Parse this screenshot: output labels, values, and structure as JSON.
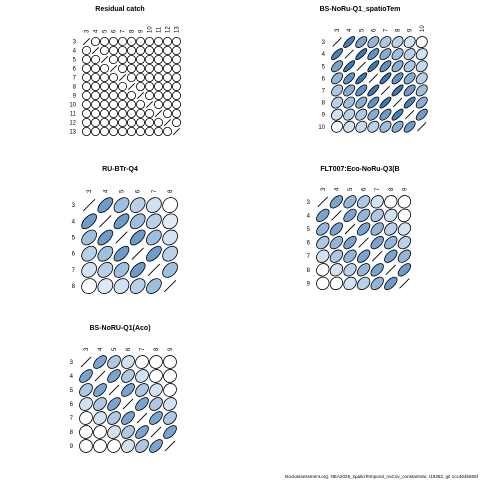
{
  "footer": "stockassessment.org, NEA2025_spatioTemporal_noCov_constantVar, r19282, git 1cc464b806f",
  "chart_data": [
    {
      "type": "correlation-matrix",
      "title": "Residual catch",
      "ages": [
        "3",
        "4",
        "5",
        "6",
        "7",
        "8",
        "9",
        "10",
        "11",
        "12",
        "13"
      ],
      "matrix": [
        [
          1.0,
          0.05,
          0.02,
          0.0,
          0.02,
          0.0,
          0.0,
          0.0,
          0.0,
          0.0,
          0.0
        ],
        [
          0.05,
          1.0,
          0.05,
          0.0,
          0.0,
          0.0,
          0.0,
          0.0,
          0.0,
          0.0,
          0.0
        ],
        [
          0.02,
          0.05,
          1.0,
          0.05,
          0.0,
          0.0,
          0.0,
          0.0,
          0.0,
          0.0,
          0.0
        ],
        [
          0.0,
          0.0,
          0.05,
          1.0,
          0.0,
          0.0,
          0.0,
          0.0,
          0.0,
          0.0,
          0.0
        ],
        [
          0.02,
          0.0,
          0.0,
          0.0,
          1.0,
          0.05,
          0.0,
          0.0,
          0.0,
          0.0,
          0.0
        ],
        [
          0.0,
          0.0,
          0.0,
          0.0,
          0.05,
          1.0,
          0.0,
          0.0,
          0.0,
          0.0,
          0.0
        ],
        [
          0.0,
          0.0,
          0.0,
          0.0,
          0.0,
          0.0,
          1.0,
          0.0,
          0.0,
          0.0,
          0.0
        ],
        [
          0.0,
          0.0,
          0.0,
          0.0,
          0.0,
          0.0,
          0.0,
          1.0,
          0.0,
          0.0,
          0.0
        ],
        [
          0.0,
          0.0,
          0.0,
          0.0,
          0.0,
          0.0,
          0.0,
          0.0,
          1.0,
          0.0,
          0.0
        ],
        [
          0.0,
          0.0,
          0.0,
          0.0,
          0.0,
          0.0,
          0.0,
          0.0,
          0.0,
          1.0,
          0.0
        ],
        [
          0.0,
          0.0,
          0.0,
          0.0,
          0.0,
          0.0,
          0.0,
          0.0,
          0.0,
          0.0,
          1.0
        ]
      ]
    },
    {
      "type": "correlation-matrix",
      "title": "BS-NoRu-Q1_spatioTem",
      "ages": [
        "3",
        "4",
        "5",
        "6",
        "7",
        "8",
        "9",
        "10"
      ],
      "matrix": [
        [
          1.0,
          0.75,
          0.55,
          0.45,
          0.35,
          0.3,
          0.2,
          0.1
        ],
        [
          0.75,
          1.0,
          0.8,
          0.65,
          0.5,
          0.4,
          0.3,
          0.2
        ],
        [
          0.55,
          0.8,
          1.0,
          0.8,
          0.65,
          0.5,
          0.35,
          0.25
        ],
        [
          0.45,
          0.65,
          0.8,
          1.0,
          0.8,
          0.65,
          0.5,
          0.3
        ],
        [
          0.35,
          0.5,
          0.65,
          0.8,
          1.0,
          0.8,
          0.6,
          0.4
        ],
        [
          0.3,
          0.4,
          0.5,
          0.65,
          0.8,
          1.0,
          0.75,
          0.5
        ],
        [
          0.2,
          0.3,
          0.35,
          0.5,
          0.6,
          0.75,
          1.0,
          0.6
        ],
        [
          0.1,
          0.2,
          0.25,
          0.3,
          0.4,
          0.5,
          0.6,
          1.0
        ]
      ]
    },
    {
      "type": "correlation-matrix",
      "title": "RU-BTr-Q4",
      "ages": [
        "3",
        "4",
        "5",
        "6",
        "7",
        "8"
      ],
      "matrix": [
        [
          1.0,
          0.6,
          0.4,
          0.3,
          0.2,
          0.1
        ],
        [
          0.6,
          1.0,
          0.6,
          0.4,
          0.3,
          0.15
        ],
        [
          0.4,
          0.6,
          1.0,
          0.6,
          0.4,
          0.2
        ],
        [
          0.3,
          0.4,
          0.6,
          1.0,
          0.6,
          0.3
        ],
        [
          0.2,
          0.3,
          0.4,
          0.6,
          1.0,
          0.4
        ],
        [
          0.1,
          0.15,
          0.2,
          0.3,
          0.4,
          1.0
        ]
      ]
    },
    {
      "type": "correlation-matrix",
      "title": "FLT007:Eco-NoRu-Q3(B",
      "ages": [
        "3",
        "4",
        "5",
        "6",
        "7",
        "8",
        "9"
      ],
      "matrix": [
        [
          1.0,
          0.55,
          0.45,
          0.35,
          0.2,
          0.1,
          0.05
        ],
        [
          0.55,
          1.0,
          0.55,
          0.45,
          0.35,
          0.2,
          0.1
        ],
        [
          0.45,
          0.55,
          1.0,
          0.55,
          0.45,
          0.3,
          0.2
        ],
        [
          0.35,
          0.45,
          0.55,
          1.0,
          0.55,
          0.45,
          0.3
        ],
        [
          0.2,
          0.35,
          0.45,
          0.55,
          1.0,
          0.55,
          0.45
        ],
        [
          0.1,
          0.2,
          0.3,
          0.45,
          0.55,
          1.0,
          0.6
        ],
        [
          0.05,
          0.1,
          0.2,
          0.3,
          0.45,
          0.6,
          1.0
        ]
      ]
    },
    {
      "type": "correlation-matrix",
      "title": "BS-NoRU-Q1(Aco)",
      "ages": [
        "3",
        "4",
        "5",
        "6",
        "7",
        "8",
        "9"
      ],
      "matrix": [
        [
          1.0,
          0.55,
          0.35,
          0.2,
          0.1,
          0.05,
          0.0
        ],
        [
          0.55,
          1.0,
          0.55,
          0.35,
          0.2,
          0.1,
          0.05
        ],
        [
          0.35,
          0.55,
          1.0,
          0.55,
          0.35,
          0.2,
          0.1
        ],
        [
          0.2,
          0.35,
          0.55,
          1.0,
          0.55,
          0.35,
          0.2
        ],
        [
          0.1,
          0.2,
          0.35,
          0.55,
          1.0,
          0.55,
          0.35
        ],
        [
          0.05,
          0.1,
          0.2,
          0.35,
          0.55,
          1.0,
          0.55
        ],
        [
          0.0,
          0.05,
          0.1,
          0.2,
          0.35,
          0.55,
          1.0
        ]
      ]
    }
  ]
}
